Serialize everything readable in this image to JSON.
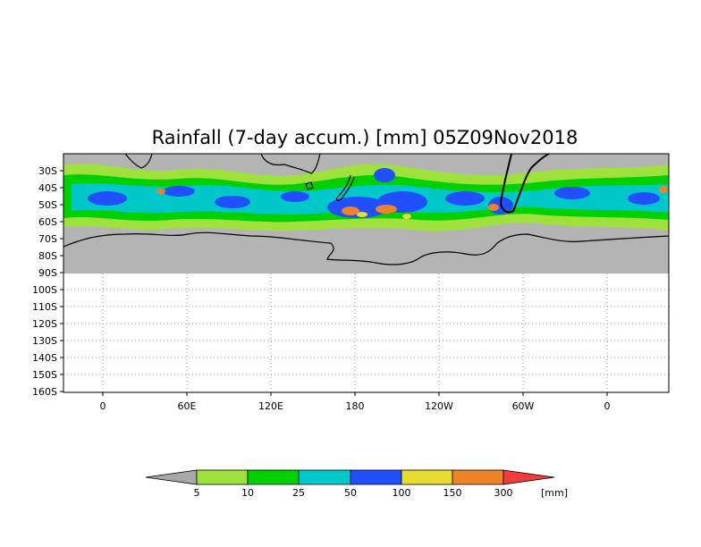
{
  "map": {
    "title": "Rainfall (7-day accum.) [mm] 05Z09Nov2018",
    "lat_labels": [
      "30S",
      "40S",
      "50S",
      "60S",
      "70S",
      "80S",
      "90S",
      "100S",
      "110S",
      "120S",
      "130S",
      "140S",
      "150S",
      "160S"
    ],
    "lon_labels": [
      "0",
      "60E",
      "120E",
      "180",
      "120W",
      "60W",
      "0"
    ],
    "no_data_color": "#b4b4b4",
    "land_outline_color": "#000000"
  },
  "colorbar": {
    "unit": "[mm]",
    "boundaries": [
      "5",
      "10",
      "25",
      "50",
      "100",
      "150",
      "300"
    ],
    "colors": [
      "#a8a8a8",
      "#9ee03c",
      "#00d000",
      "#00c8c8",
      "#2050ff",
      "#e6dc32",
      "#f08228",
      "#f03c3c"
    ]
  }
}
